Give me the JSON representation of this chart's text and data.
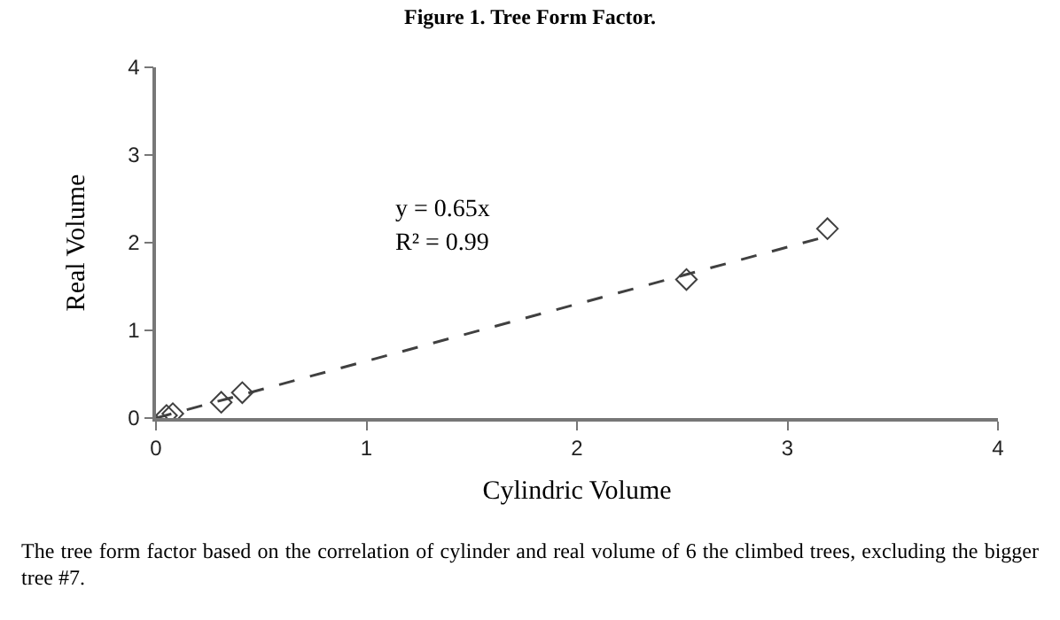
{
  "chart_data": {
    "type": "scatter",
    "title": "Figure 1. Tree Form Factor.",
    "xlabel": "Cylindric Volume",
    "ylabel": "Real Volume",
    "annotations": [
      "y = 0.65x",
      "R² = 0.99",
      "The tree form factor based on the correlation of cylinder and real volume of 6 the climbed trees, excluding the bigger tree #7."
    ],
    "series": [
      {
        "color": "#404040",
        "x": [
          0.05,
          0.08,
          0.31,
          0.41,
          2.52,
          3.19
        ],
        "values": [
          0.03,
          0.05,
          0.18,
          0.29,
          1.58,
          2.16
        ]
      },
      {
        "type": "line",
        "color": "#404040",
        "line_style": "dashed",
        "marker": "none",
        "x": [
          0,
          3.2
        ],
        "values": [
          0,
          2.08
        ]
      }
    ],
    "marker": "diamond",
    "grid": false,
    "legend": false,
    "xlim": [
      0,
      4
    ],
    "xticks": [
      0,
      1,
      2,
      3,
      4
    ],
    "ylim": [
      0,
      4
    ],
    "yticks": [
      0,
      1,
      2,
      3,
      4
    ]
  }
}
